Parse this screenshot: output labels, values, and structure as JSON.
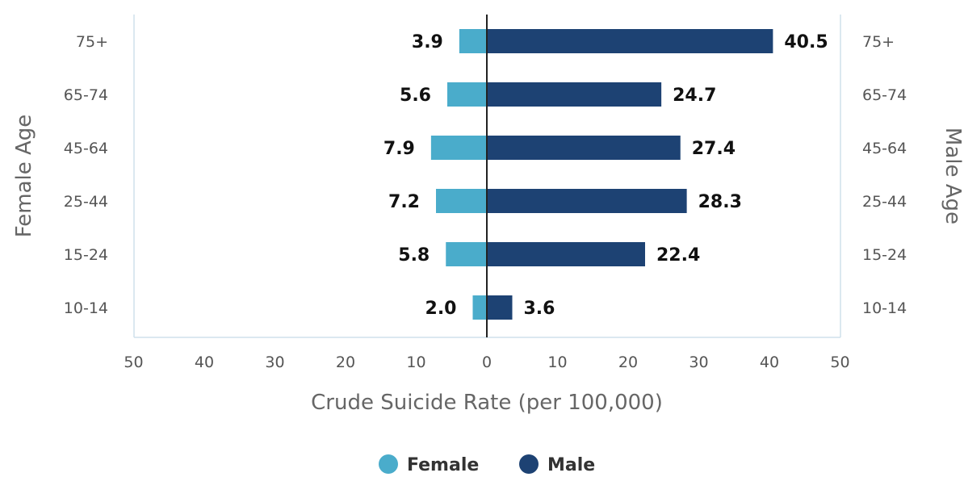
{
  "chart_data": {
    "type": "bar",
    "orientation": "horizontal-butterfly",
    "categories": [
      "75+",
      "65-74",
      "45-64",
      "25-44",
      "15-24",
      "10-14"
    ],
    "series": [
      {
        "name": "Female",
        "color": "#4aaccb",
        "values": [
          3.9,
          5.6,
          7.9,
          7.2,
          5.8,
          2.0
        ]
      },
      {
        "name": "Male",
        "color": "#1d4273",
        "values": [
          40.5,
          24.7,
          27.4,
          28.3,
          22.4,
          3.6
        ]
      }
    ],
    "xlabel": "Crude Suicide Rate (per 100,000)",
    "ylabel_left": "Female Age",
    "ylabel_right": "Male Age",
    "xlim": [
      -50,
      50
    ],
    "x_ticks": [
      -50,
      -40,
      -30,
      -20,
      -10,
      0,
      10,
      20,
      30,
      40,
      50
    ],
    "x_tick_labels": [
      "50",
      "40",
      "30",
      "20",
      "10",
      "0",
      "10",
      "20",
      "30",
      "40",
      "50"
    ],
    "value_labels": {
      "female": [
        "3.9",
        "5.6",
        "7.9",
        "7.2",
        "5.8",
        "2.0"
      ],
      "male": [
        "40.5",
        "24.7",
        "27.4",
        "28.3",
        "22.4",
        "3.6"
      ]
    },
    "legend": {
      "placement": "bottom-center",
      "items": [
        "Female",
        "Male"
      ]
    },
    "grid": false
  }
}
